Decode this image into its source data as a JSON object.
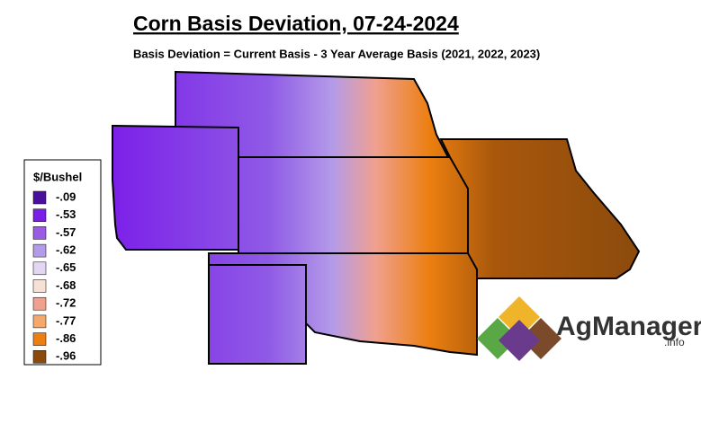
{
  "title": "Corn Basis Deviation, 07-24-2024",
  "subtitle": "Basis Deviation = Current Basis - 3 Year Average Basis (2021, 2022, 2023)",
  "legend": {
    "title": "$/Bushel",
    "items": [
      {
        "label": "-.09",
        "color": "#4b0f9e"
      },
      {
        "label": "-.53",
        "color": "#7b1fe8"
      },
      {
        "label": "-.57",
        "color": "#9a5ae6"
      },
      {
        "label": "-.62",
        "color": "#b49be8"
      },
      {
        "label": "-.65",
        "color": "#e3d6f2"
      },
      {
        "label": "-.68",
        "color": "#f7e0d6"
      },
      {
        "label": "-.72",
        "color": "#f0a08e"
      },
      {
        "label": "-.77",
        "color": "#f4a86a"
      },
      {
        "label": "-.86",
        "color": "#ec7f10"
      },
      {
        "label": "-.96",
        "color": "#8b4a0c"
      }
    ]
  },
  "logo": {
    "name": "AgManager",
    "suffix": ".info"
  }
}
